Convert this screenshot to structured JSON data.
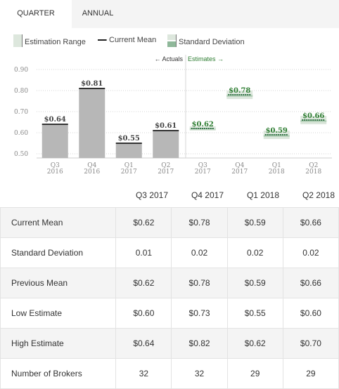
{
  "tabs": {
    "quarter": "QUARTER",
    "annual": "ANNUAL"
  },
  "legend": {
    "range": "Estimation Range",
    "mean": "Current Mean",
    "sd": "Standard Deviation"
  },
  "colors": {
    "actual_bar": "#b7b7b7",
    "estimate_band": "#dde7dd",
    "estimate_band_dark": "#b9d3bd",
    "mean_line": "#2c6e3f",
    "accent": "#2e7d32"
  },
  "chart_data": {
    "type": "bar",
    "yticks": [
      "0.50",
      "0.60",
      "0.70",
      "0.80",
      "0.90"
    ],
    "ylim": [
      0.48,
      0.91
    ],
    "actuals_label": "← Actuals",
    "estimates_label": "Estimates →",
    "categories": [
      "Q3\n2016",
      "Q4\n2016",
      "Q1\n2017",
      "Q2\n2017",
      "Q3\n2017",
      "Q4\n2017",
      "Q1\n2018",
      "Q2\n2018"
    ],
    "actuals": [
      {
        "label": "$0.64",
        "value": 0.64
      },
      {
        "label": "$0.81",
        "value": 0.81
      },
      {
        "label": "$0.55",
        "value": 0.55
      },
      {
        "label": "$0.61",
        "value": 0.61
      }
    ],
    "estimates": [
      {
        "label": "$0.62",
        "mean": 0.62,
        "sd": 0.01
      },
      {
        "label": "$0.78",
        "mean": 0.78,
        "sd": 0.02
      },
      {
        "label": "$0.59",
        "mean": 0.59,
        "sd": 0.02
      },
      {
        "label": "$0.66",
        "mean": 0.66,
        "sd": 0.02
      }
    ]
  },
  "table": {
    "columns": [
      "Q3 2017",
      "Q4 2017",
      "Q1 2018",
      "Q2 2018"
    ],
    "rows": [
      {
        "label": "Current Mean",
        "values": [
          "$0.62",
          "$0.78",
          "$0.59",
          "$0.66"
        ]
      },
      {
        "label": "Standard Deviation",
        "values": [
          "0.01",
          "0.02",
          "0.02",
          "0.02"
        ]
      },
      {
        "label": "Previous Mean",
        "values": [
          "$0.62",
          "$0.78",
          "$0.59",
          "$0.66"
        ]
      },
      {
        "label": "Low Estimate",
        "values": [
          "$0.60",
          "$0.73",
          "$0.55",
          "$0.60"
        ]
      },
      {
        "label": "High Estimate",
        "values": [
          "$0.64",
          "$0.82",
          "$0.62",
          "$0.70"
        ]
      },
      {
        "label": "Number of Brokers",
        "values": [
          "32",
          "32",
          "29",
          "29"
        ]
      }
    ]
  }
}
